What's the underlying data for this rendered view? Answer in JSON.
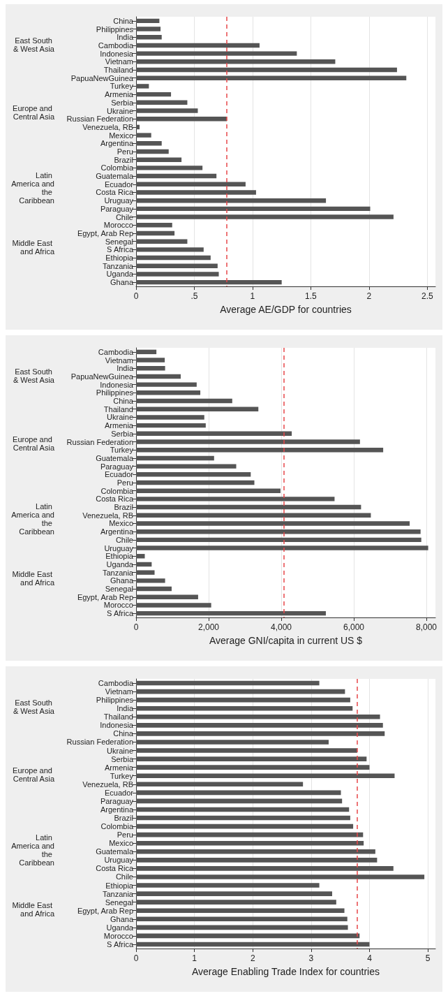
{
  "chart_data": [
    {
      "type": "bar",
      "orientation": "horizontal",
      "xlabel": "Average AE/GDP for countries",
      "grid": "x",
      "color": "#555555",
      "categories": [
        "China",
        "Philippines",
        "India",
        "Cambodia",
        "Indonesia",
        "Vietnam",
        "Thailand",
        "PapuaNewGuinea",
        "Turkey",
        "Armenia",
        "Serbia",
        "Ukraine",
        "Russian Federation",
        "Venezuela, RB",
        "Mexico",
        "Argentina",
        "Peru",
        "Brazil",
        "Colombia",
        "Guatemala",
        "Ecuador",
        "Costa Rica",
        "Uruguay",
        "Paraguay",
        "Chile",
        "Morocco",
        "Egypt, Arab Rep",
        "Senegal",
        "S Africa",
        "Ethiopia",
        "Tanzania",
        "Uganda",
        "Ghana"
      ],
      "values": [
        0.2,
        0.21,
        0.22,
        1.06,
        1.38,
        1.71,
        2.24,
        2.32,
        0.11,
        0.3,
        0.44,
        0.53,
        0.78,
        0.03,
        0.13,
        0.22,
        0.28,
        0.39,
        0.57,
        0.69,
        0.94,
        1.03,
        1.63,
        2.01,
        2.21,
        0.31,
        0.33,
        0.44,
        0.58,
        0.64,
        0.7,
        0.71,
        1.25
      ],
      "xlim": [
        0,
        2.57
      ],
      "xticks": [
        0,
        {
          "value": 0.5,
          "label": ".5"
        },
        1,
        1.5,
        2,
        2.5
      ],
      "ref_lines": [
        {
          "axis": "x",
          "value": 0.78,
          "color": "#e8474a",
          "line_style": "dashed"
        }
      ],
      "annotations": [
        "East South & West Asia",
        "Europe and Central Asia",
        "Latin America and the Caribbean",
        "Middle East and Africa"
      ]
    },
    {
      "type": "bar",
      "orientation": "horizontal",
      "xlabel": "Average GNI/capita in current US $",
      "grid": "x",
      "color": "#555555",
      "categories": [
        "Cambodia",
        "Vietnam",
        "India",
        "PapuaNewGuinea",
        "Indonesia",
        "Philippines",
        "China",
        "Thailand",
        "Ukraine",
        "Armenia",
        "Serbia",
        "Russian Federation",
        "Turkey",
        "Guatemala",
        "Paraguay",
        "Ecuador",
        "Peru",
        "Colombia",
        "Costa Rica",
        "Brazil",
        "Venezuela, RB",
        "Mexico",
        "Argentina",
        "Chile",
        "Uruguay",
        "Ethiopia",
        "Uganda",
        "Tanzania",
        "Ghana",
        "Senegal",
        "Egypt, Arab Rep",
        "Morocco",
        "S Africa"
      ],
      "values": [
        560,
        790,
        800,
        1230,
        1670,
        1770,
        2650,
        3370,
        1880,
        1920,
        4290,
        6170,
        6810,
        2150,
        2760,
        3160,
        3260,
        3980,
        5470,
        6200,
        6470,
        7540,
        7840,
        7860,
        8050,
        240,
        430,
        510,
        800,
        980,
        1710,
        2070,
        5230
      ],
      "xlim": [
        0,
        8250
      ],
      "xticks": [
        0,
        {
          "value": 2000,
          "label": "2,000"
        },
        {
          "value": 4000,
          "label": "4,000"
        },
        {
          "value": 6000,
          "label": "6,000"
        },
        {
          "value": 8000,
          "label": "8,000"
        }
      ],
      "ref_lines": [
        {
          "axis": "x",
          "value": 4080,
          "color": "#e8474a",
          "line_style": "dashed"
        }
      ],
      "annotations": [
        "East South & West Asia",
        "Europe and Central Asia",
        "Latin America and the Caribbean",
        "Middle East and Africa"
      ]
    },
    {
      "type": "bar",
      "orientation": "horizontal",
      "xlabel": "Average Enabling Trade Index for countries",
      "grid": "x",
      "color": "#555555",
      "categories": [
        "Cambodia",
        "Vietnam",
        "Philippines",
        "India",
        "Thailand",
        "Indonesia",
        "China",
        "Russian Federation",
        "Ukraine",
        "Serbia",
        "Armenia",
        "Turkey",
        "Venezuela, RB",
        "Ecuador",
        "Paraguay",
        "Argentina",
        "Brazil",
        "Colombia",
        "Peru",
        "Mexico",
        "Guatemala",
        "Uruguay",
        "Costa Rica",
        "Chile",
        "Ethiopia",
        "Tanzania",
        "Senegal",
        "Egypt, Arab Rep",
        "Ghana",
        "Uganda",
        "Morocco",
        "S Africa"
      ],
      "values": [
        3.14,
        3.58,
        3.67,
        3.71,
        4.18,
        4.23,
        4.26,
        3.3,
        3.79,
        3.95,
        4.0,
        4.43,
        2.86,
        3.51,
        3.53,
        3.65,
        3.67,
        3.72,
        3.89,
        3.9,
        4.1,
        4.13,
        4.41,
        4.94,
        3.14,
        3.36,
        3.43,
        3.57,
        3.62,
        3.63,
        3.83,
        4.0
      ],
      "xlim": [
        0,
        5.13
      ],
      "xticks": [
        0,
        1,
        2,
        3,
        4,
        5
      ],
      "ref_lines": [
        {
          "axis": "x",
          "value": 3.79,
          "color": "#e8474a",
          "line_style": "dashed"
        }
      ],
      "annotations": [
        "East South & West Asia",
        "Europe and Central Asia",
        "Latin America and the Caribbean",
        "Middle East and Africa"
      ]
    }
  ]
}
